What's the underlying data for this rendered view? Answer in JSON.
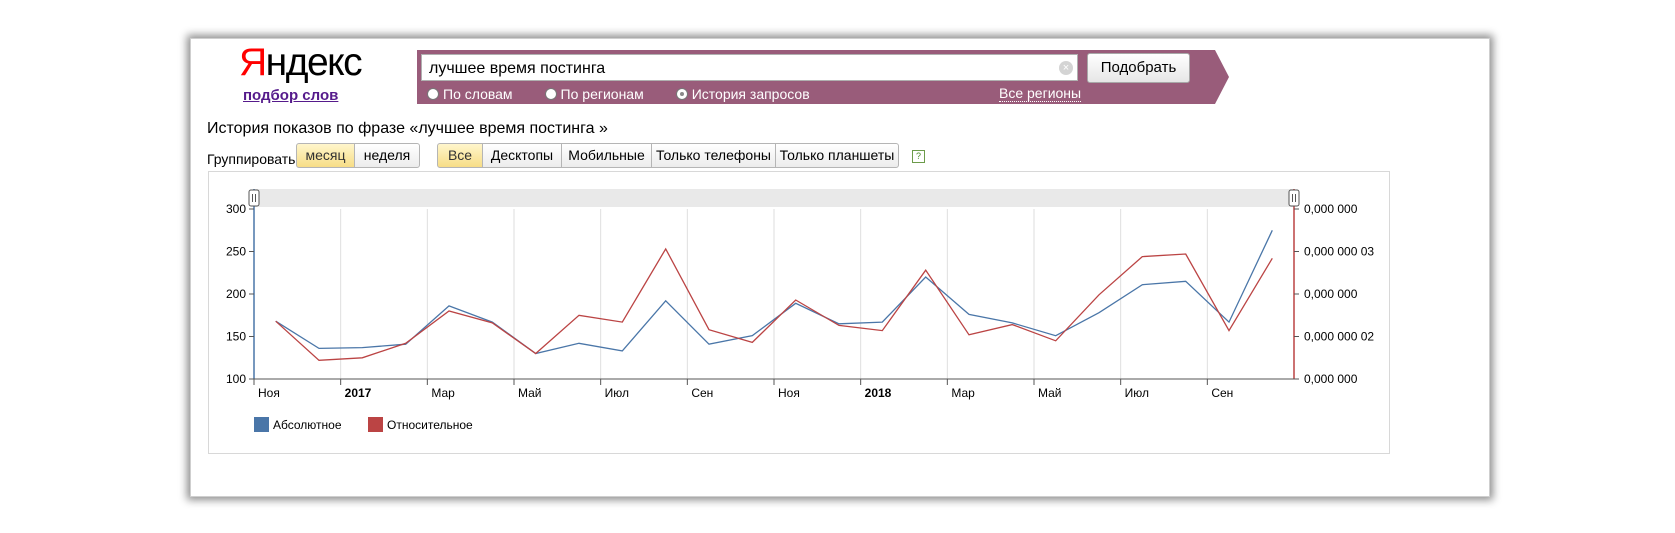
{
  "logo": {
    "first_letter": "Я",
    "rest": "ндекс"
  },
  "logo_subtitle": "подбор слов",
  "search": {
    "value": "лучшее время постинга",
    "submit_label": "Подобрать",
    "clear_icon": "×"
  },
  "search_modes": [
    {
      "label": "По словам",
      "selected": false
    },
    {
      "label": "По регионам",
      "selected": false
    },
    {
      "label": "История запросов",
      "selected": true
    }
  ],
  "regions_link": "Все регионы",
  "history_title": "История показов по фразе «лучшее время постинга »",
  "group_by": {
    "label": "Группировать по:",
    "options": [
      "месяц",
      "неделя"
    ],
    "active": "месяц"
  },
  "device_tabs": {
    "options": [
      "Все",
      "Десктопы",
      "Мобильные",
      "Только телефоны",
      "Только планшеты"
    ],
    "active": "Все"
  },
  "help_icon": "?",
  "colors": {
    "absolute": "#4a76a8",
    "relative": "#bb4444",
    "search_band": "#995c7a"
  },
  "chart_data": {
    "type": "line",
    "x": [
      "Ноя",
      "Дек",
      "2017",
      "Фев",
      "Мар",
      "Апр",
      "Май",
      "Июн",
      "Июл",
      "Авг",
      "Сен",
      "Окт",
      "Ноя",
      "Дек",
      "2018",
      "Фев",
      "Мар",
      "Апр",
      "Май",
      "Июн",
      "Июл",
      "Авг",
      "Сен",
      "Окт"
    ],
    "x_tick_labels": [
      "Ноя",
      "2017",
      "Мар",
      "Май",
      "Июл",
      "Сен",
      "Ноя",
      "2018",
      "Мар",
      "Май",
      "Июл",
      "Сен"
    ],
    "x_tick_bold": [
      "2017",
      "2018"
    ],
    "series": [
      {
        "name": "Абсолютное",
        "axis": "left",
        "color": "#4a76a8",
        "values": [
          168,
          136,
          137,
          141,
          186,
          167,
          130,
          142,
          133,
          192,
          141,
          151,
          189,
          165,
          167,
          220,
          176,
          166,
          151,
          178,
          211,
          215,
          167,
          275
        ]
      },
      {
        "name": "Относительное",
        "axis": "right",
        "color": "#bb4444",
        "values": [
          168,
          122,
          125,
          142,
          180,
          166,
          130,
          175,
          167,
          253,
          158,
          143,
          193,
          163,
          157,
          228,
          152,
          164,
          145,
          199,
          244,
          247,
          157,
          242
        ]
      }
    ],
    "left_axis": {
      "ticks": [
        100,
        150,
        200,
        250,
        300
      ],
      "ylim": [
        100,
        300
      ]
    },
    "right_axis": {
      "tick_labels": [
        "0,000 000",
        "0,000 000 02",
        "0,000 000",
        "0,000 000 03",
        "0,000 000"
      ]
    },
    "legend": {
      "placement": "bottom-left"
    },
    "grid": "vertical"
  }
}
